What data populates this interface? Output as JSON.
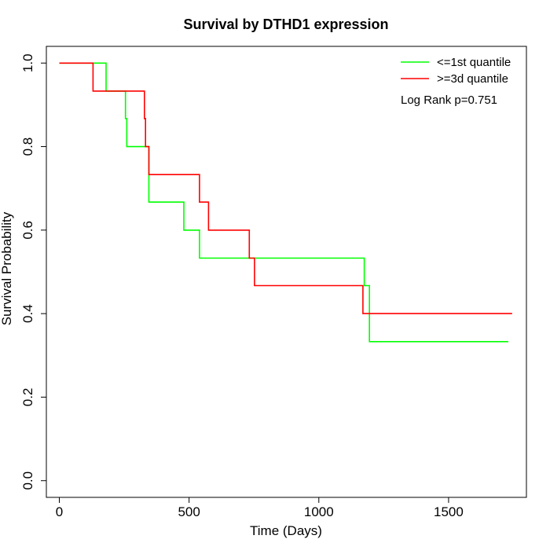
{
  "chart_data": {
    "type": "line",
    "step": true,
    "title": "Survival by DTHD1 expression",
    "xlabel": "Time (Days)",
    "ylabel": "Survival Probability",
    "xlim": [
      -50,
      1800
    ],
    "ylim": [
      -0.04,
      1.04
    ],
    "x_ticks": [
      0,
      500,
      1000,
      1500
    ],
    "x_tick_labels": [
      "0",
      "500",
      "1000",
      "1500"
    ],
    "y_ticks": [
      0,
      0.2,
      0.4,
      0.6,
      0.8,
      1.0
    ],
    "y_tick_labels": [
      "0.0",
      "0.2",
      "0.4",
      "0.6",
      "0.8",
      "1.0"
    ],
    "grid": false,
    "legend_position": "top-right",
    "annotation": "Log Rank p=0.751",
    "series": [
      {
        "name": "<=1st quantile",
        "color": "#00ff00",
        "x": [
          0,
          180,
          180,
          255,
          255,
          260,
          260,
          345,
          345,
          480,
          480,
          540,
          540,
          1175,
          1175,
          1195,
          1195,
          1730
        ],
        "y": [
          1.0,
          1.0,
          0.933,
          0.933,
          0.867,
          0.867,
          0.8,
          0.8,
          0.667,
          0.667,
          0.6,
          0.6,
          0.533,
          0.533,
          0.467,
          0.467,
          0.333,
          0.333
        ]
      },
      {
        "name": ">=3d quantile",
        "color": "#ff0000",
        "x": [
          0,
          130,
          130,
          328,
          328,
          332,
          332,
          345,
          345,
          540,
          540,
          575,
          575,
          732,
          732,
          752,
          752,
          1170,
          1170,
          1745
        ],
        "y": [
          1.0,
          1.0,
          0.933,
          0.933,
          0.867,
          0.867,
          0.8,
          0.8,
          0.733,
          0.733,
          0.667,
          0.667,
          0.6,
          0.6,
          0.533,
          0.533,
          0.467,
          0.467,
          0.4,
          0.4
        ]
      }
    ]
  }
}
